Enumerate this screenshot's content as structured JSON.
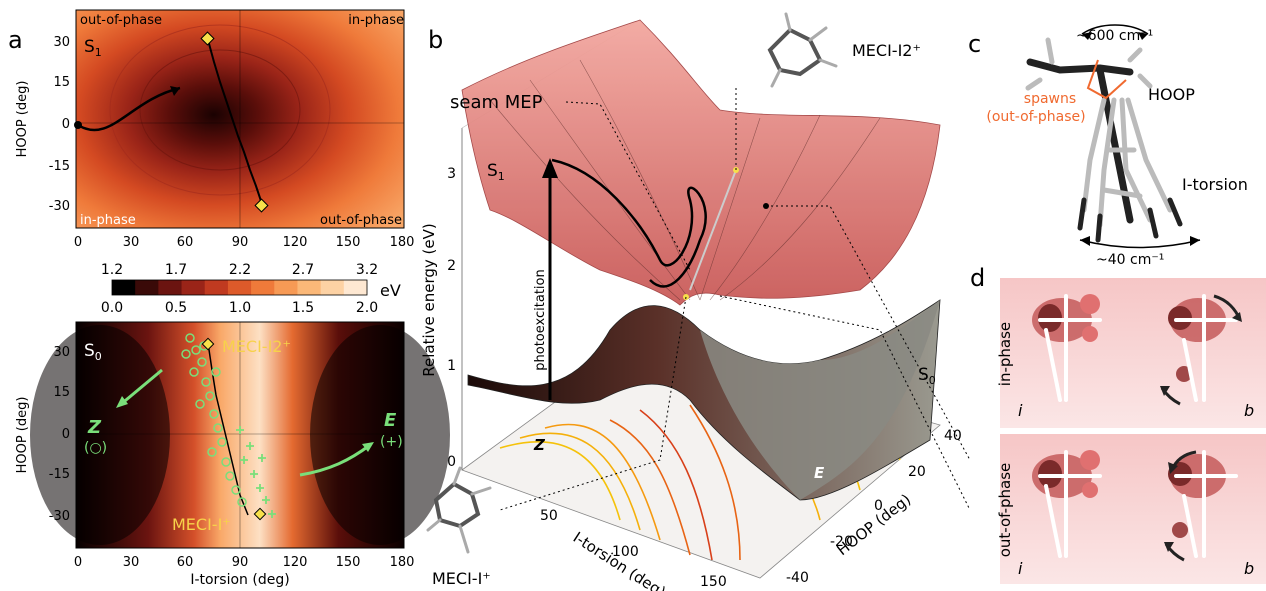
{
  "panel_labels": {
    "a": "a",
    "b": "b",
    "c": "c",
    "d": "d"
  },
  "panel_a_top": {
    "state_label": "S",
    "state_sub": "1",
    "corner_top_left": "out-of-phase",
    "corner_top_right": "in-phase",
    "corner_bottom_left": "in-phase",
    "corner_bottom_right": "out-of-phase",
    "ylabel": "HOOP (deg)",
    "yticks": [
      "30",
      "15",
      "0",
      "-15",
      "-30"
    ],
    "xticks": [
      "0",
      "30",
      "60",
      "90",
      "120",
      "150",
      "180"
    ]
  },
  "colorbar": {
    "top_ticks": [
      "1.2",
      "1.7",
      "2.2",
      "2.7",
      "3.2"
    ],
    "bottom_ticks": [
      "0.0",
      "0.5",
      "1.0",
      "1.5",
      "2.0"
    ],
    "unit": "eV",
    "colors": [
      "#000000",
      "#3a0a08",
      "#6b1410",
      "#9a2418",
      "#c03a20",
      "#dd5a2a",
      "#ef7a3a",
      "#f79a55",
      "#fbb878",
      "#fdd2a4",
      "#fee8d2"
    ]
  },
  "panel_a_bottom": {
    "state_label": "S",
    "state_sub": "0",
    "meci_i2": "MECI-I2⁺",
    "meci_i": "MECI-I⁺",
    "z_label": "Z",
    "z_marker": "(○)",
    "e_label": "E",
    "e_marker": "(+)",
    "ylabel": "HOOP (deg)",
    "yticks": [
      "30",
      "15",
      "0",
      "-15",
      "-30"
    ],
    "xticks": [
      "0",
      "30",
      "60",
      "90",
      "120",
      "150",
      "180"
    ],
    "xlabel": "I-torsion (deg)"
  },
  "panel_b": {
    "seam_mep": "seam MEP",
    "meci_i2": "MECI-I2⁺",
    "meci_i": "MECI-I⁺",
    "s1_label": "S",
    "s1_sub": "1",
    "s0_label": "S",
    "s0_sub": "0",
    "photoexcitation": "photoexcitation",
    "z_label": "Z",
    "e_label": "E",
    "zlabel": "Relative energy (eV)",
    "zticks": [
      "0",
      "1",
      "2",
      "3"
    ],
    "xlabel": "I-torsion (deg)",
    "xticks": [
      "50",
      "100",
      "150"
    ],
    "ylabel": "HOOP (deg)",
    "yticks": [
      "40",
      "20",
      "0",
      "-20",
      "-40"
    ]
  },
  "panel_c": {
    "freq_high": "~600 cm⁻¹",
    "freq_low": "~40 cm⁻¹",
    "spawns_line1": "spawns",
    "spawns_line2": "(out-of-phase)",
    "hoop": "HOOP",
    "itorsion": "I-torsion"
  },
  "panel_d": {
    "in_phase": "in-phase",
    "out_of_phase": "out-of-phase",
    "label_i": "i",
    "label_b": "b"
  }
}
